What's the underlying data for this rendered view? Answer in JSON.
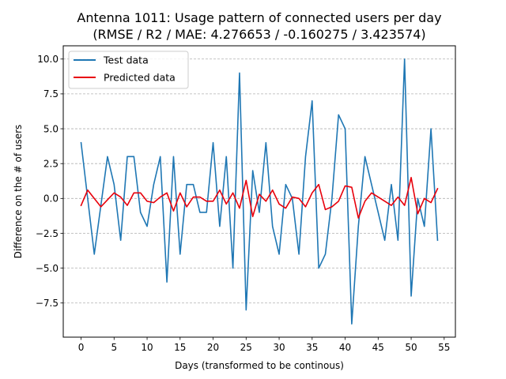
{
  "chart_data": {
    "type": "line",
    "title": "Antenna 1011: Usage pattern of connected users per day",
    "subtitle": "(RMSE / R2 / MAE: 4.276653 / -0.160275 / 3.423574)",
    "xlabel": "Days (transformed to be continous)",
    "ylabel": "Difference on the # of users",
    "xlim": [
      -2.7,
      56.7
    ],
    "ylim": [
      -9.95,
      10.95
    ],
    "xticks": [
      0,
      5,
      10,
      15,
      20,
      25,
      30,
      35,
      40,
      45,
      50,
      55
    ],
    "xtick_labels": [
      "0",
      "5",
      "10",
      "15",
      "20",
      "25",
      "30",
      "35",
      "40",
      "45",
      "50",
      "55"
    ],
    "yticks": [
      -7.5,
      -5.0,
      -2.5,
      0.0,
      2.5,
      5.0,
      7.5,
      10.0
    ],
    "ytick_labels": [
      "−7.5",
      "−5.0",
      "−2.5",
      "0.0",
      "2.5",
      "5.0",
      "7.5",
      "10.0"
    ],
    "grid": "y-dashed",
    "legend_position": "top-left",
    "x": [
      0,
      1,
      2,
      3,
      4,
      5,
      6,
      7,
      8,
      9,
      10,
      11,
      12,
      13,
      14,
      15,
      16,
      17,
      18,
      19,
      20,
      21,
      22,
      23,
      24,
      25,
      26,
      27,
      28,
      29,
      30,
      31,
      32,
      33,
      34,
      35,
      36,
      37,
      38,
      39,
      40,
      41,
      42,
      43,
      44,
      45,
      46,
      47,
      48,
      49,
      50,
      51,
      52,
      53,
      54
    ],
    "series": [
      {
        "name": "Test data",
        "color": "#1f77b4",
        "values": [
          4,
          0,
          -4,
          -0.5,
          3,
          1,
          -3,
          3,
          3,
          -1,
          -2,
          1,
          3,
          -6,
          3,
          -4,
          1,
          1,
          -1,
          -1,
          4,
          -2,
          3,
          -5,
          9,
          -8,
          2,
          -1,
          4,
          -2,
          -4,
          1,
          0,
          -4,
          3,
          7,
          -5,
          -4,
          0,
          6,
          5,
          -9,
          -2,
          3,
          1,
          -1,
          -3,
          1,
          -3,
          10,
          -7,
          0,
          -2,
          5,
          -3
        ]
      },
      {
        "name": "Predicted data",
        "color": "#e8000b",
        "values": [
          -0.5,
          0.6,
          0,
          -0.6,
          -0.1,
          0.4,
          0.1,
          -0.5,
          0.4,
          0.4,
          -0.2,
          -0.3,
          0.1,
          0.4,
          -0.9,
          0.4,
          -0.6,
          0.1,
          0.1,
          -0.2,
          -0.2,
          0.6,
          -0.4,
          0.4,
          -0.7,
          1.3,
          -1.3,
          0.3,
          -0.2,
          0.6,
          -0.4,
          -0.7,
          0.1,
          0,
          -0.6,
          0.4,
          1,
          -0.8,
          -0.6,
          -0.2,
          0.9,
          0.8,
          -1.4,
          -0.2,
          0.4,
          0.1,
          -0.2,
          -0.5,
          0.1,
          -0.5,
          1.5,
          -1.1,
          0,
          -0.3,
          0.7
        ]
      }
    ]
  }
}
